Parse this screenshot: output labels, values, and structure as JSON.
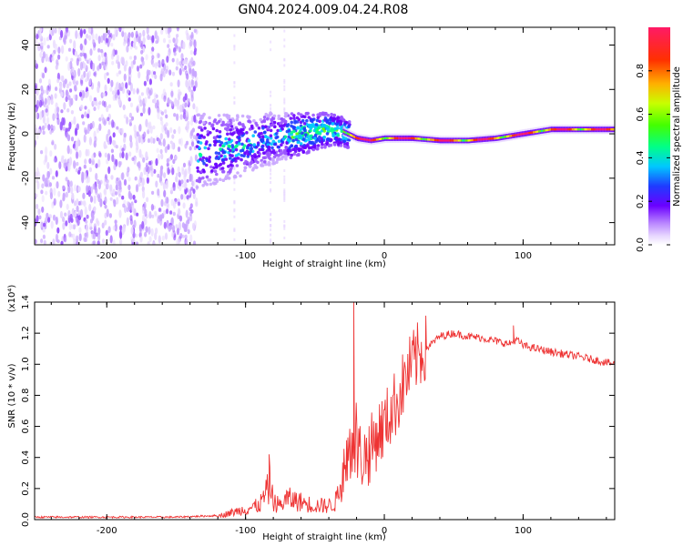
{
  "title": "GN04.2024.009.04.24.R08",
  "colors": {
    "snr_line": "#ee3333",
    "spectrum_colormap": [
      "#ffffff",
      "#e8d8ff",
      "#c9a6ff",
      "#9a55ff",
      "#6a00ff",
      "#1f3cff",
      "#00c8ff",
      "#00ff88",
      "#66ff00",
      "#f0ff00",
      "#ffb000",
      "#ff3000",
      "#ff1a66"
    ]
  },
  "chart_data": [
    {
      "type": "heatmap",
      "panel": "spectrogram",
      "xlabel": "Height of straight line (km)",
      "ylabel": "Frequency (Hz)",
      "xlim": [
        -252,
        166
      ],
      "ylim": [
        -50,
        48
      ],
      "xticks": [
        -200,
        -100,
        0,
        100
      ],
      "yticks": [
        -40,
        -20,
        0,
        20,
        40
      ],
      "xtick_labels": [
        "-200",
        "-100",
        "0",
        "100"
      ],
      "ytick_labels": [
        "-40",
        "-20",
        "0",
        "20",
        "40"
      ],
      "colorbar": {
        "label": "Normalized spectral amplitude",
        "range": [
          0,
          1
        ],
        "ticks": [
          0.0,
          0.2,
          0.4,
          0.6,
          0.8
        ],
        "tick_labels": [
          "0.0",
          "0.2",
          "0.4",
          "0.6",
          "0.8"
        ]
      },
      "ridge": {
        "x": [
          -135,
          -120,
          -100,
          -80,
          -60,
          -40,
          -30,
          -20,
          -10,
          0,
          10,
          20,
          40,
          60,
          80,
          100,
          120,
          140,
          166
        ],
        "freq": [
          -8,
          -7,
          -5,
          -2,
          0,
          2,
          1,
          -2,
          -3,
          -2,
          -2,
          -2,
          -3,
          -3,
          -2,
          0,
          2,
          2,
          2
        ]
      },
      "grid": false,
      "legend": "none"
    },
    {
      "type": "line",
      "panel": "snr",
      "xlabel": "Height of straight line (km)",
      "ylabel": "SNR (10 * v/v)",
      "y_multiplier": "(x10⁴)",
      "xlim": [
        -252,
        166
      ],
      "ylim": [
        0,
        1.4
      ],
      "xticks": [
        -200,
        -100,
        0,
        100
      ],
      "yticks": [
        0.0,
        0.2,
        0.4,
        0.6,
        0.8,
        1.0,
        1.2,
        1.4
      ],
      "xtick_labels": [
        "-200",
        "-100",
        "0",
        "100"
      ],
      "ytick_labels": [
        "0.0",
        "0.2",
        "0.4",
        "0.6",
        "0.8",
        "1.0",
        "1.2",
        "1.4"
      ],
      "series": [
        {
          "x": [
            -252,
            -200,
            -150,
            -120,
            -100,
            -90,
            -82,
            -80,
            -75,
            -70,
            -60,
            -50,
            -40,
            -35,
            -30,
            -25,
            -22,
            -20,
            -15,
            -10,
            -5,
            0,
            5,
            10,
            15,
            20,
            25,
            30,
            40,
            50,
            60,
            70,
            80,
            90,
            95,
            100,
            120,
            140,
            166
          ],
          "y": [
            0.01,
            0.01,
            0.01,
            0.02,
            0.06,
            0.08,
            0.2,
            0.1,
            0.08,
            0.12,
            0.1,
            0.08,
            0.08,
            0.1,
            0.25,
            0.4,
            0.55,
            0.45,
            0.4,
            0.45,
            0.55,
            0.6,
            0.7,
            0.78,
            0.9,
            1.0,
            1.06,
            1.1,
            1.18,
            1.2,
            1.18,
            1.17,
            1.15,
            1.13,
            1.16,
            1.12,
            1.08,
            1.05,
            1.0
          ]
        }
      ],
      "spikes": [
        {
          "x": -83,
          "y": 0.42
        },
        {
          "x": -22,
          "y": 1.4
        },
        {
          "x": 93,
          "y": 1.25
        }
      ],
      "grid": false,
      "legend": "none"
    }
  ]
}
